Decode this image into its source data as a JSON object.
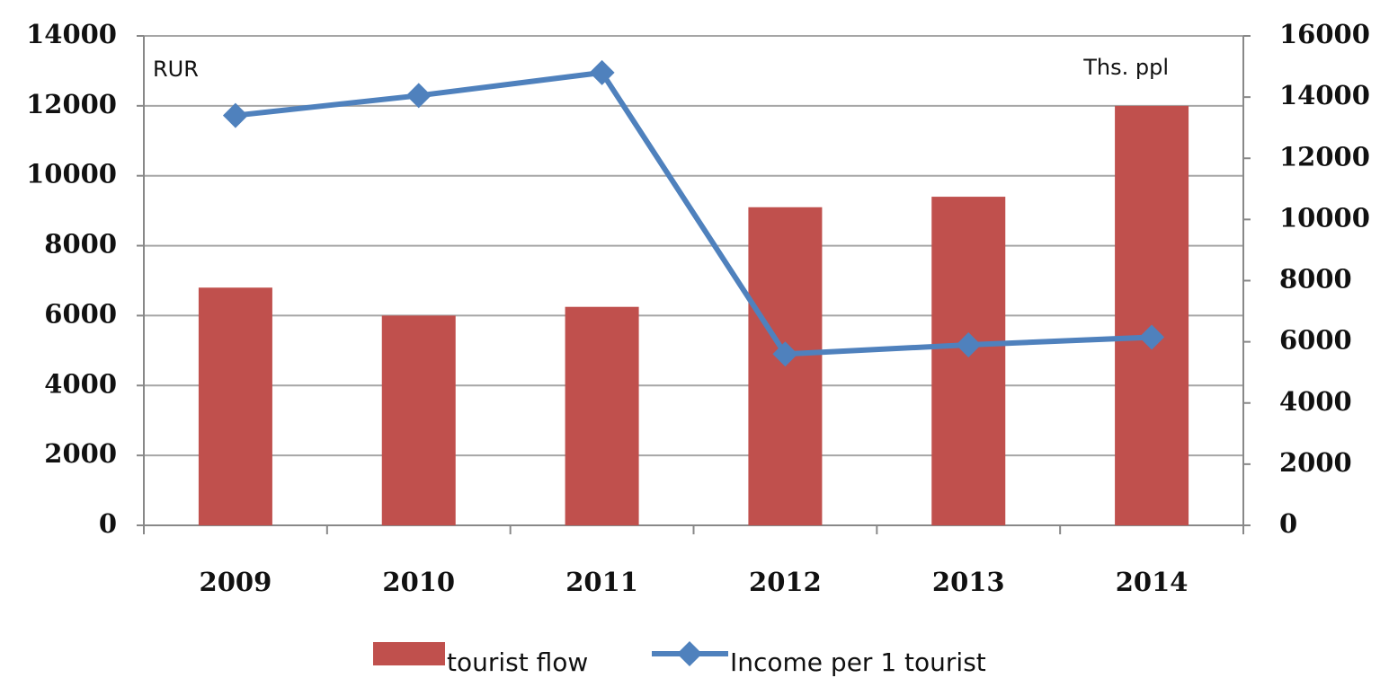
{
  "chart_data": {
    "type": "bar_line",
    "y_label": "RUR",
    "y2_label": "Ths. ppl",
    "categories": [
      "2009",
      "2010",
      "2011",
      "2012",
      "2013",
      "2014"
    ],
    "series": [
      {
        "name": "tourist flow",
        "color": "#c0504d",
        "type": "bar",
        "axis": "y",
        "values": [
          6800,
          6000,
          6250,
          9100,
          9400,
          12000
        ]
      },
      {
        "name": "Income per 1 tourist",
        "color": "#4f81bd",
        "type": "line",
        "axis": "y2",
        "values": [
          13400,
          14050,
          14800,
          5600,
          5900,
          6150
        ]
      }
    ],
    "ylim": [
      0,
      14000
    ],
    "yticks": [
      0,
      2000,
      4000,
      6000,
      8000,
      10000,
      12000,
      14000
    ],
    "y2lim": [
      0,
      16000
    ],
    "y2ticks": [
      0,
      2000,
      4000,
      6000,
      8000,
      10000,
      12000,
      14000,
      16000
    ],
    "grid": true,
    "legend": "bottom"
  }
}
